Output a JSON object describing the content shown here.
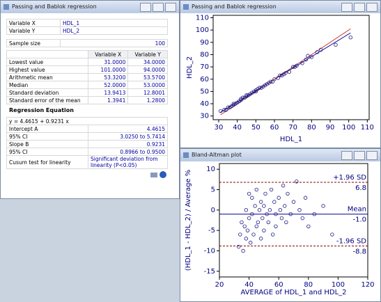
{
  "windows": {
    "report_title": "Passing and Bablok regression",
    "scatter_title": "Passing and Bablok regression",
    "bland_altman_title": "Bland-Altman plot"
  },
  "report": {
    "variables": [
      [
        "Variable X",
        "HDL_1"
      ],
      [
        "Variable Y",
        "HDL_2"
      ]
    ],
    "sample_size": [
      "Sample size",
      "100"
    ],
    "stats_header": [
      "Variable X",
      "Variable Y"
    ],
    "stats": [
      [
        "Lowest value",
        "31.0000",
        "34.0000"
      ],
      [
        "Highest value",
        "101.0000",
        "94.0000"
      ],
      [
        "Arithmetic mean",
        "53.3200",
        "53.5700"
      ],
      [
        "Median",
        "52.0000",
        "53.0000"
      ],
      [
        "Standard deviation",
        "13.9413",
        "12.8001"
      ],
      [
        "Standard error of the mean",
        "1.3941",
        "1.2800"
      ]
    ],
    "regression_heading": "Regression Equation",
    "equation": "y  =  4.4615  + 0.9231  x",
    "regression": [
      [
        "Intercept A",
        "4.4615"
      ],
      [
        "95% CI",
        "3.0250 to 5.7414"
      ],
      [
        "Slope B",
        "0.9231"
      ],
      [
        "95% CI",
        "0.8966 to 0.9500"
      ],
      [
        "Cusum test for linearity",
        "Significant deviation from linearity (P<0.05)"
      ]
    ]
  },
  "chart_data": [
    {
      "type": "scatter",
      "xlabel": "HDL_1",
      "ylabel": "HDL_2",
      "color": "#1a1a80",
      "x": [
        31,
        33,
        34,
        35,
        36,
        37,
        38,
        38,
        39,
        40,
        41,
        42,
        42,
        43,
        44,
        45,
        45,
        46,
        47,
        48,
        49,
        50,
        50,
        51,
        52,
        53,
        54,
        55,
        56,
        57,
        58,
        59,
        60,
        62,
        63,
        64,
        65,
        66,
        68,
        70,
        71,
        72,
        75,
        77,
        78,
        80,
        83,
        85,
        93,
        101
      ],
      "values": [
        34,
        35,
        35,
        37,
        37,
        38,
        40,
        39,
        40,
        41,
        42,
        43,
        44,
        45,
        45,
        46,
        47,
        47,
        48,
        49,
        50,
        51,
        50,
        52,
        53,
        53,
        54,
        55,
        56,
        57,
        58,
        58,
        60,
        61,
        63,
        63,
        64,
        65,
        66,
        70,
        70,
        71,
        73,
        76,
        79,
        78,
        82,
        84,
        88,
        94
      ],
      "lines": [
        {
          "intercept": 4.4615,
          "slope": 0.9231,
          "xrange": [
            31,
            101
          ],
          "color": "#00008b"
        },
        {
          "intercept": 0,
          "slope": 1,
          "xrange": [
            31,
            101
          ],
          "color": "#d04040"
        }
      ],
      "xlim": [
        27,
        111
      ],
      "xticks": [
        30,
        40,
        50,
        60,
        70,
        80,
        90,
        100,
        110
      ],
      "ylim": [
        27,
        112
      ],
      "yticks": [
        30,
        40,
        50,
        60,
        70,
        80,
        90,
        100,
        110
      ]
    },
    {
      "type": "scatter",
      "xlabel": "AVERAGE of HDL_1 and HDL_2",
      "ylabel": "(HDL_1 - HDL_2) / Average %",
      "color": "#1a1a80",
      "x": [
        33,
        34,
        35,
        36,
        37,
        38,
        38,
        39,
        40,
        40,
        41,
        42,
        42,
        43,
        44,
        45,
        45,
        46,
        47,
        48,
        48,
        49,
        50,
        50,
        51,
        52,
        53,
        54,
        55,
        56,
        57,
        58,
        58,
        60,
        61,
        62,
        63,
        64,
        65,
        66,
        68,
        70,
        72,
        74,
        76,
        78,
        80,
        84,
        90,
        96
      ],
      "values": [
        -9,
        -6,
        -3,
        -10,
        -4,
        -7,
        0,
        -5,
        -2,
        4,
        -8,
        -1,
        3,
        -6,
        1,
        -4,
        5,
        -3,
        0,
        -7,
        2,
        -2,
        -5,
        1,
        4,
        -1,
        -3,
        0,
        5,
        -6,
        2,
        -1,
        -4,
        3,
        0,
        -2,
        6,
        1,
        -3,
        4,
        -1,
        2,
        7,
        0,
        -2,
        3,
        -4,
        -1,
        1,
        -6
      ],
      "hlines": [
        {
          "name": "+1.96 SD",
          "value": 6.8,
          "value_label": "6.8",
          "color": "#8b0000",
          "dashed": true
        },
        {
          "name": "Mean",
          "value": -1.0,
          "value_label": "-1.0",
          "color": "#00008b",
          "dashed": false
        },
        {
          "name": "-1.96 SD",
          "value": -8.8,
          "value_label": "-8.8",
          "color": "#8b0000",
          "dashed": true
        }
      ],
      "xlim": [
        20,
        120
      ],
      "xticks": [
        20,
        40,
        60,
        80,
        100,
        120
      ],
      "ylim": [
        -16.4,
        11.4
      ],
      "yticks": [
        -15,
        -10,
        -5,
        0,
        5,
        10
      ]
    }
  ]
}
